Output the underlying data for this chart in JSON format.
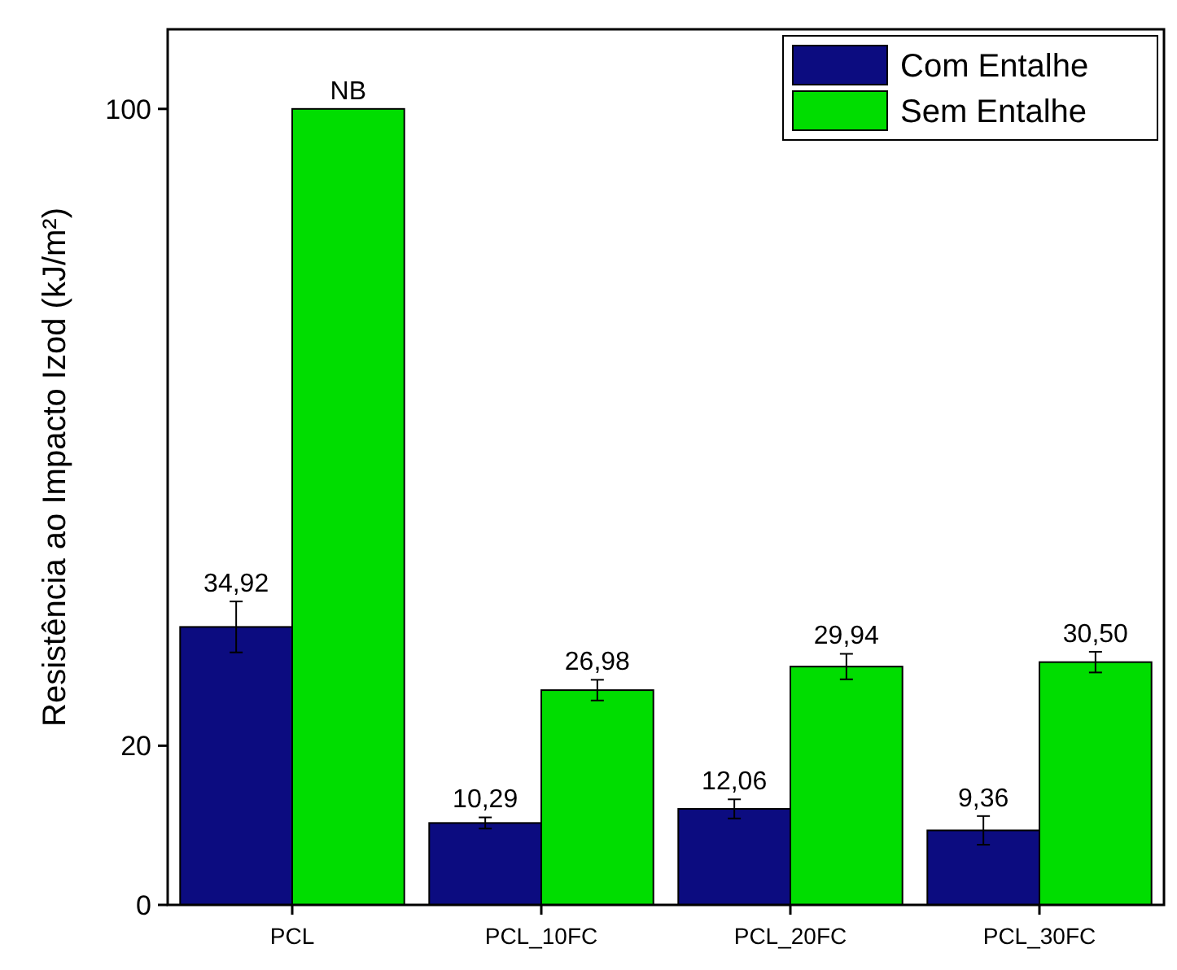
{
  "chart_data": {
    "type": "bar",
    "ylabel": "Resistência ao Impacto Izod (kJ/m²)",
    "categories": [
      "PCL",
      "PCL_10FC",
      "PCL_20FC",
      "PCL_30FC"
    ],
    "series": [
      {
        "name": "Com Entalhe",
        "color": "#0c0c80",
        "values": [
          34.92,
          10.29,
          12.06,
          9.36
        ],
        "errors": [
          3.2,
          0.7,
          1.2,
          1.8
        ],
        "value_labels": [
          "34,92",
          "10,29",
          "12,06",
          "9,36"
        ]
      },
      {
        "name": "Sem Entalhe",
        "color": "#00dd00",
        "values": [
          100,
          26.98,
          29.94,
          30.5
        ],
        "errors": [
          null,
          1.3,
          1.6,
          1.3
        ],
        "value_labels": [
          "NB",
          "26,98",
          "29,94",
          "30,50"
        ]
      }
    ],
    "ylim": [
      0,
      110
    ],
    "yticks": [
      0,
      20,
      100
    ],
    "grid": false,
    "legend": "top right"
  }
}
